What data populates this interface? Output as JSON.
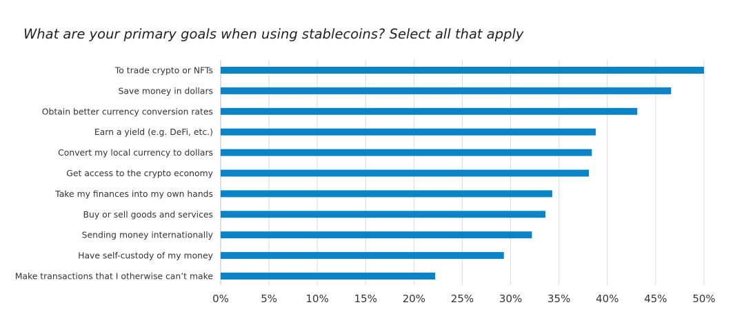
{
  "chart_data": {
    "type": "bar",
    "orientation": "horizontal",
    "title": "What are your primary goals when using stablecoins? Select all that apply",
    "categories": [
      "To trade crypto or NFTs",
      "Save money in dollars",
      "Obtain better currency conversion rates",
      "Earn a yield (e.g. DeFi, etc.)",
      "Convert my local currency to dollars",
      "Get access to the crypto economy",
      "Take my finances into my own hands",
      "Buy or sell goods and services",
      "Sending money internationally",
      "Have self-custody of my money",
      "Make transactions that I otherwise can’t make"
    ],
    "values": [
      50,
      46.6,
      43.1,
      38.8,
      38.4,
      38.1,
      34.3,
      33.6,
      32.2,
      29.3,
      22.2
    ],
    "xlim": [
      0,
      50
    ],
    "xticks": [
      0,
      5,
      10,
      15,
      20,
      25,
      30,
      35,
      40,
      45,
      50
    ],
    "xtick_labels": [
      "0%",
      "5%",
      "10%",
      "15%",
      "20%",
      "25%",
      "30%",
      "35%",
      "40%",
      "45%",
      "50%"
    ],
    "grid": true,
    "legend": "none",
    "colors": {
      "bar": "#0A84C6",
      "grid": "#D9D9D9",
      "axis": "#BFBFBF",
      "text": "#333333"
    }
  }
}
